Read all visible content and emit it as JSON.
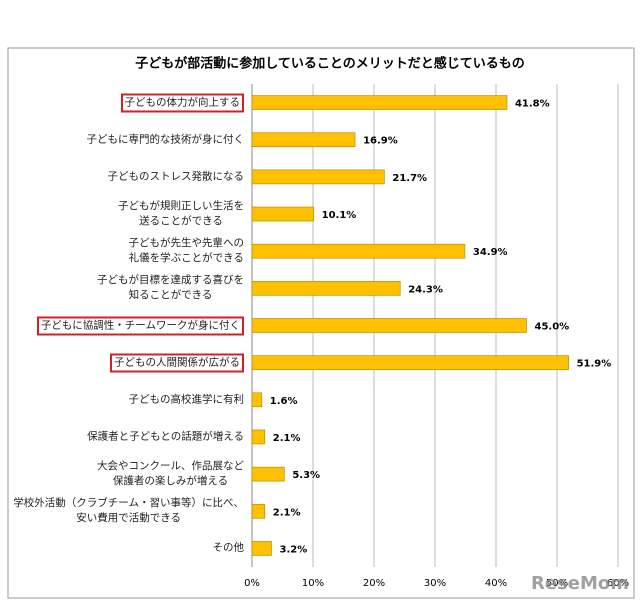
{
  "chart_data": {
    "type": "bar",
    "orientation": "horizontal",
    "title": "子どもが部活動に参加していることのメリットだと感じているもの",
    "categories": [
      "子どもの体力が向上する",
      "子どもに専門的な技術が身に付く",
      "子どものストレス発散になる",
      "子どもが規則正しい生活を\n送ることができる",
      "子どもが先生や先輩への\n礼儀を学ぶことができる",
      "子どもが目標を達成する喜びを\n知ることができる",
      "子どもに協調性・チームワークが身に付く",
      "子どもの人間関係が広がる",
      "子どもの高校進学に有利",
      "保護者と子どもとの話題が増える",
      "大会やコンクール、作品展など\n保護者の楽しみが増える",
      "学校外活動（クラブチーム・習い事等）に比べ、\n安い費用で活動できる",
      "その他"
    ],
    "values": [
      41.8,
      16.9,
      21.7,
      10.1,
      34.9,
      24.3,
      45.0,
      51.9,
      1.6,
      2.1,
      5.3,
      2.1,
      3.2
    ],
    "value_labels": [
      "41.8%",
      "16.9%",
      "21.7%",
      "10.1%",
      "34.9%",
      "24.3%",
      "45.0%",
      "51.9%",
      "1.6%",
      "2.1%",
      "5.3%",
      "2.1%",
      "3.2%"
    ],
    "highlight": [
      true,
      false,
      false,
      false,
      false,
      false,
      true,
      true,
      false,
      false,
      false,
      false,
      false
    ],
    "color": "#ffc000",
    "xlim": [
      0,
      60
    ],
    "xticks": [
      {
        "value": 0,
        "label": "0%"
      },
      {
        "value": 10,
        "label": "10%"
      },
      {
        "value": 20,
        "label": "20%"
      },
      {
        "value": 30,
        "label": "30%"
      },
      {
        "value": 40,
        "label": "40%"
      },
      {
        "value": 50,
        "label": "50%"
      },
      {
        "value": 60,
        "label": "60%"
      }
    ],
    "grid": true,
    "watermark": "ReseMom"
  }
}
